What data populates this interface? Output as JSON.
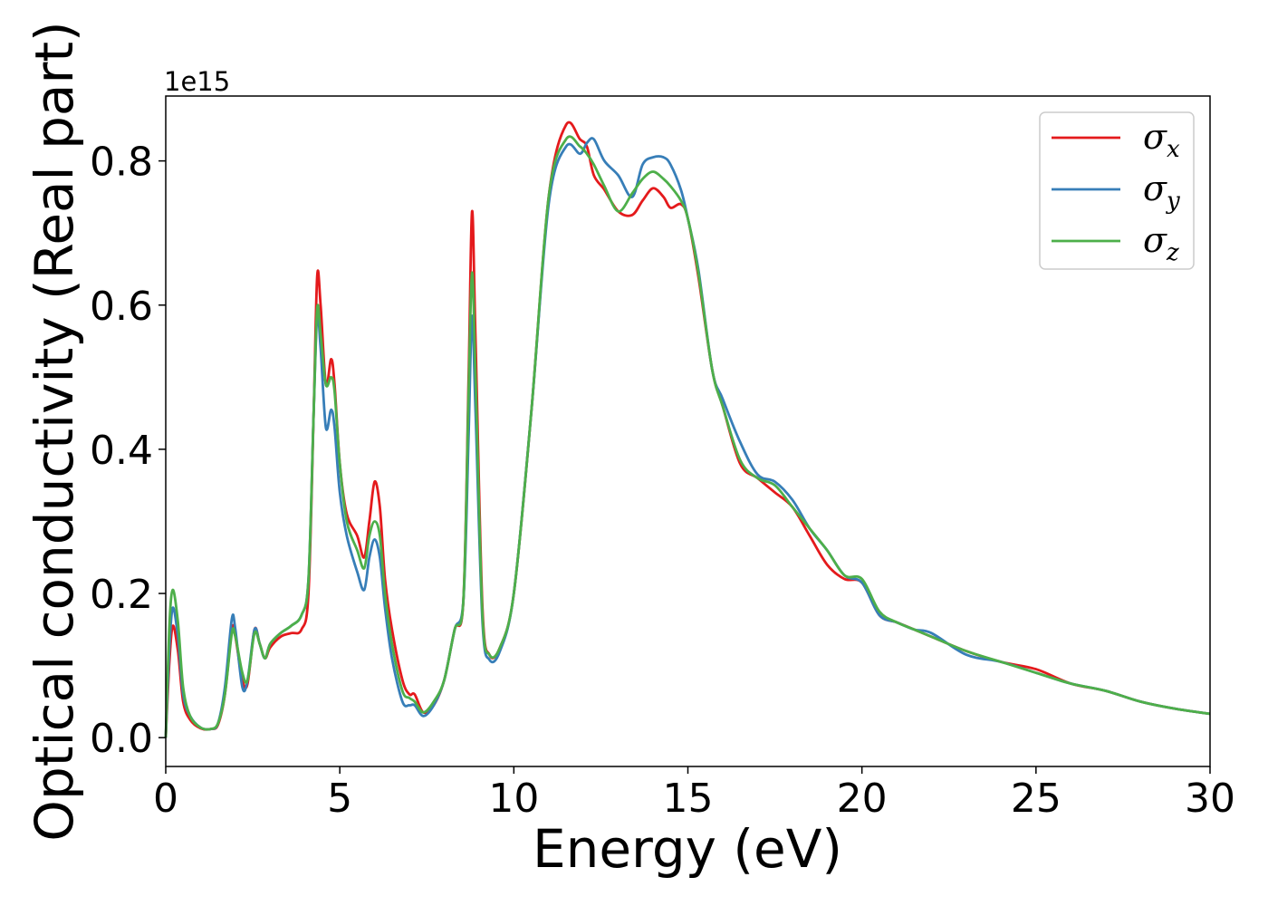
{
  "chart_data": {
    "type": "line",
    "title": "",
    "xlabel": "Energy (eV)",
    "ylabel": "Optical conductivity (Real part)",
    "y_offset_label": "1e15",
    "xlim": [
      0,
      30
    ],
    "ylim": [
      -0.04,
      0.89
    ],
    "x_ticks": [
      0,
      5,
      10,
      15,
      20,
      25,
      30
    ],
    "x_tick_labels": [
      "0",
      "5",
      "10",
      "15",
      "20",
      "25",
      "30"
    ],
    "y_ticks": [
      0.0,
      0.2,
      0.4,
      0.6,
      0.8
    ],
    "y_tick_labels": [
      "0.0",
      "0.2",
      "0.4",
      "0.6",
      "0.8"
    ],
    "grid": false,
    "legend_position": "top-right",
    "series": [
      {
        "name": "σx",
        "symbol": "σ",
        "subscript": "x",
        "color": "#e41a1c",
        "points": [
          [
            0,
            0.0
          ],
          [
            0.1,
            0.1
          ],
          [
            0.2,
            0.155
          ],
          [
            0.35,
            0.12
          ],
          [
            0.5,
            0.05
          ],
          [
            0.7,
            0.025
          ],
          [
            1.0,
            0.013
          ],
          [
            1.3,
            0.012
          ],
          [
            1.5,
            0.018
          ],
          [
            1.7,
            0.06
          ],
          [
            1.9,
            0.15
          ],
          [
            2.0,
            0.14
          ],
          [
            2.2,
            0.08
          ],
          [
            2.35,
            0.075
          ],
          [
            2.55,
            0.15
          ],
          [
            2.7,
            0.13
          ],
          [
            2.85,
            0.11
          ],
          [
            3.0,
            0.125
          ],
          [
            3.3,
            0.14
          ],
          [
            3.6,
            0.145
          ],
          [
            3.9,
            0.15
          ],
          [
            4.1,
            0.2
          ],
          [
            4.25,
            0.45
          ],
          [
            4.35,
            0.64
          ],
          [
            4.45,
            0.6
          ],
          [
            4.6,
            0.49
          ],
          [
            4.75,
            0.525
          ],
          [
            4.85,
            0.49
          ],
          [
            5.0,
            0.38
          ],
          [
            5.2,
            0.31
          ],
          [
            5.5,
            0.28
          ],
          [
            5.7,
            0.25
          ],
          [
            5.85,
            0.3
          ],
          [
            6.0,
            0.355
          ],
          [
            6.15,
            0.32
          ],
          [
            6.3,
            0.22
          ],
          [
            6.5,
            0.15
          ],
          [
            6.8,
            0.08
          ],
          [
            7.0,
            0.06
          ],
          [
            7.15,
            0.06
          ],
          [
            7.4,
            0.035
          ],
          [
            7.7,
            0.045
          ],
          [
            8.0,
            0.08
          ],
          [
            8.3,
            0.15
          ],
          [
            8.55,
            0.19
          ],
          [
            8.7,
            0.5
          ],
          [
            8.8,
            0.73
          ],
          [
            8.9,
            0.55
          ],
          [
            9.1,
            0.18
          ],
          [
            9.3,
            0.115
          ],
          [
            9.6,
            0.125
          ],
          [
            10.0,
            0.2
          ],
          [
            10.5,
            0.45
          ],
          [
            11.0,
            0.75
          ],
          [
            11.5,
            0.85
          ],
          [
            11.9,
            0.83
          ],
          [
            12.1,
            0.82
          ],
          [
            12.3,
            0.78
          ],
          [
            12.6,
            0.76
          ],
          [
            13.0,
            0.73
          ],
          [
            13.4,
            0.725
          ],
          [
            13.7,
            0.745
          ],
          [
            14.0,
            0.762
          ],
          [
            14.3,
            0.75
          ],
          [
            14.5,
            0.735
          ],
          [
            14.8,
            0.74
          ],
          [
            15.0,
            0.72
          ],
          [
            15.3,
            0.64
          ],
          [
            15.7,
            0.51
          ],
          [
            16.0,
            0.46
          ],
          [
            16.5,
            0.38
          ],
          [
            17.0,
            0.36
          ],
          [
            17.5,
            0.34
          ],
          [
            18.0,
            0.32
          ],
          [
            18.5,
            0.28
          ],
          [
            19.0,
            0.24
          ],
          [
            19.5,
            0.22
          ],
          [
            20.0,
            0.215
          ],
          [
            20.5,
            0.17
          ],
          [
            21.0,
            0.16
          ],
          [
            21.5,
            0.15
          ],
          [
            22.0,
            0.14
          ],
          [
            23.0,
            0.12
          ],
          [
            24.0,
            0.105
          ],
          [
            25.0,
            0.095
          ],
          [
            26.0,
            0.075
          ],
          [
            27.0,
            0.065
          ],
          [
            28.0,
            0.05
          ],
          [
            29.0,
            0.04
          ],
          [
            30.0,
            0.033
          ]
        ]
      },
      {
        "name": "σy",
        "symbol": "σ",
        "subscript": "y",
        "color": "#377eb8",
        "points": [
          [
            0,
            0.0
          ],
          [
            0.1,
            0.12
          ],
          [
            0.2,
            0.18
          ],
          [
            0.35,
            0.14
          ],
          [
            0.5,
            0.06
          ],
          [
            0.7,
            0.03
          ],
          [
            1.0,
            0.014
          ],
          [
            1.3,
            0.012
          ],
          [
            1.5,
            0.02
          ],
          [
            1.7,
            0.07
          ],
          [
            1.9,
            0.165
          ],
          [
            2.0,
            0.15
          ],
          [
            2.2,
            0.07
          ],
          [
            2.35,
            0.08
          ],
          [
            2.55,
            0.15
          ],
          [
            2.7,
            0.13
          ],
          [
            2.85,
            0.11
          ],
          [
            3.0,
            0.13
          ],
          [
            3.3,
            0.145
          ],
          [
            3.6,
            0.155
          ],
          [
            3.9,
            0.17
          ],
          [
            4.1,
            0.22
          ],
          [
            4.25,
            0.45
          ],
          [
            4.35,
            0.585
          ],
          [
            4.45,
            0.54
          ],
          [
            4.6,
            0.43
          ],
          [
            4.75,
            0.455
          ],
          [
            4.85,
            0.43
          ],
          [
            5.0,
            0.34
          ],
          [
            5.2,
            0.28
          ],
          [
            5.5,
            0.23
          ],
          [
            5.7,
            0.205
          ],
          [
            5.85,
            0.25
          ],
          [
            6.0,
            0.275
          ],
          [
            6.15,
            0.25
          ],
          [
            6.3,
            0.18
          ],
          [
            6.5,
            0.11
          ],
          [
            6.8,
            0.05
          ],
          [
            7.0,
            0.045
          ],
          [
            7.15,
            0.045
          ],
          [
            7.4,
            0.03
          ],
          [
            7.7,
            0.045
          ],
          [
            8.0,
            0.08
          ],
          [
            8.3,
            0.15
          ],
          [
            8.55,
            0.19
          ],
          [
            8.7,
            0.42
          ],
          [
            8.8,
            0.585
          ],
          [
            8.9,
            0.45
          ],
          [
            9.1,
            0.16
          ],
          [
            9.3,
            0.108
          ],
          [
            9.6,
            0.12
          ],
          [
            10.0,
            0.2
          ],
          [
            10.5,
            0.45
          ],
          [
            11.0,
            0.74
          ],
          [
            11.5,
            0.82
          ],
          [
            11.9,
            0.81
          ],
          [
            12.1,
            0.825
          ],
          [
            12.3,
            0.83
          ],
          [
            12.6,
            0.8
          ],
          [
            13.0,
            0.78
          ],
          [
            13.4,
            0.75
          ],
          [
            13.7,
            0.795
          ],
          [
            14.0,
            0.805
          ],
          [
            14.3,
            0.805
          ],
          [
            14.5,
            0.795
          ],
          [
            14.8,
            0.76
          ],
          [
            15.0,
            0.72
          ],
          [
            15.3,
            0.65
          ],
          [
            15.7,
            0.51
          ],
          [
            16.0,
            0.47
          ],
          [
            16.5,
            0.41
          ],
          [
            17.0,
            0.365
          ],
          [
            17.5,
            0.355
          ],
          [
            18.0,
            0.33
          ],
          [
            18.5,
            0.29
          ],
          [
            19.0,
            0.26
          ],
          [
            19.5,
            0.225
          ],
          [
            20.0,
            0.215
          ],
          [
            20.5,
            0.17
          ],
          [
            21.0,
            0.16
          ],
          [
            21.5,
            0.15
          ],
          [
            22.0,
            0.145
          ],
          [
            23.0,
            0.115
          ],
          [
            24.0,
            0.105
          ],
          [
            25.0,
            0.09
          ],
          [
            26.0,
            0.075
          ],
          [
            27.0,
            0.065
          ],
          [
            28.0,
            0.05
          ],
          [
            29.0,
            0.04
          ],
          [
            30.0,
            0.033
          ]
        ]
      },
      {
        "name": "σz",
        "symbol": "σ",
        "subscript": "z",
        "color": "#4daf4a",
        "points": [
          [
            0,
            0.0
          ],
          [
            0.1,
            0.15
          ],
          [
            0.2,
            0.205
          ],
          [
            0.35,
            0.16
          ],
          [
            0.5,
            0.07
          ],
          [
            0.7,
            0.03
          ],
          [
            1.0,
            0.014
          ],
          [
            1.3,
            0.012
          ],
          [
            1.5,
            0.02
          ],
          [
            1.7,
            0.06
          ],
          [
            1.9,
            0.145
          ],
          [
            2.0,
            0.14
          ],
          [
            2.2,
            0.09
          ],
          [
            2.35,
            0.08
          ],
          [
            2.55,
            0.145
          ],
          [
            2.7,
            0.13
          ],
          [
            2.85,
            0.11
          ],
          [
            3.0,
            0.13
          ],
          [
            3.3,
            0.145
          ],
          [
            3.6,
            0.155
          ],
          [
            3.9,
            0.17
          ],
          [
            4.1,
            0.22
          ],
          [
            4.25,
            0.45
          ],
          [
            4.35,
            0.595
          ],
          [
            4.45,
            0.56
          ],
          [
            4.6,
            0.49
          ],
          [
            4.75,
            0.5
          ],
          [
            4.85,
            0.48
          ],
          [
            5.0,
            0.38
          ],
          [
            5.2,
            0.3
          ],
          [
            5.5,
            0.26
          ],
          [
            5.7,
            0.235
          ],
          [
            5.85,
            0.28
          ],
          [
            6.0,
            0.3
          ],
          [
            6.15,
            0.28
          ],
          [
            6.3,
            0.2
          ],
          [
            6.5,
            0.13
          ],
          [
            6.8,
            0.065
          ],
          [
            7.0,
            0.055
          ],
          [
            7.15,
            0.05
          ],
          [
            7.4,
            0.035
          ],
          [
            7.7,
            0.05
          ],
          [
            8.0,
            0.08
          ],
          [
            8.3,
            0.15
          ],
          [
            8.55,
            0.19
          ],
          [
            8.7,
            0.48
          ],
          [
            8.8,
            0.645
          ],
          [
            8.9,
            0.5
          ],
          [
            9.1,
            0.17
          ],
          [
            9.3,
            0.115
          ],
          [
            9.6,
            0.125
          ],
          [
            10.0,
            0.2
          ],
          [
            10.5,
            0.45
          ],
          [
            11.0,
            0.75
          ],
          [
            11.5,
            0.83
          ],
          [
            11.9,
            0.82
          ],
          [
            12.1,
            0.81
          ],
          [
            12.3,
            0.795
          ],
          [
            12.6,
            0.765
          ],
          [
            13.0,
            0.73
          ],
          [
            13.4,
            0.755
          ],
          [
            13.7,
            0.775
          ],
          [
            14.0,
            0.785
          ],
          [
            14.3,
            0.775
          ],
          [
            14.5,
            0.765
          ],
          [
            14.8,
            0.745
          ],
          [
            15.0,
            0.72
          ],
          [
            15.3,
            0.645
          ],
          [
            15.7,
            0.51
          ],
          [
            16.0,
            0.46
          ],
          [
            16.5,
            0.385
          ],
          [
            17.0,
            0.36
          ],
          [
            17.5,
            0.35
          ],
          [
            18.0,
            0.32
          ],
          [
            18.5,
            0.29
          ],
          [
            19.0,
            0.26
          ],
          [
            19.5,
            0.225
          ],
          [
            20.0,
            0.22
          ],
          [
            20.5,
            0.175
          ],
          [
            21.0,
            0.16
          ],
          [
            21.5,
            0.15
          ],
          [
            22.0,
            0.14
          ],
          [
            23.0,
            0.12
          ],
          [
            24.0,
            0.105
          ],
          [
            25.0,
            0.09
          ],
          [
            26.0,
            0.075
          ],
          [
            27.0,
            0.065
          ],
          [
            28.0,
            0.05
          ],
          [
            29.0,
            0.04
          ],
          [
            30.0,
            0.033
          ]
        ]
      }
    ]
  }
}
